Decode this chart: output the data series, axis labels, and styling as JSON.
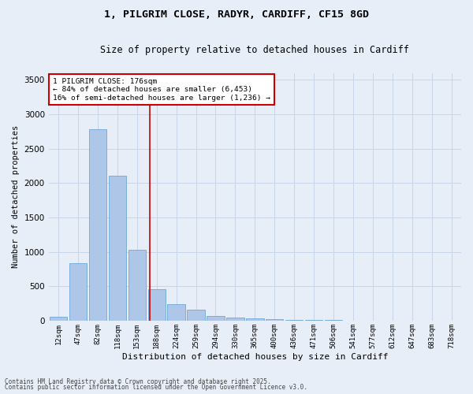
{
  "title_line1": "1, PILGRIM CLOSE, RADYR, CARDIFF, CF15 8GD",
  "title_line2": "Size of property relative to detached houses in Cardiff",
  "xlabel": "Distribution of detached houses by size in Cardiff",
  "ylabel": "Number of detached properties",
  "categories": [
    "12sqm",
    "47sqm",
    "82sqm",
    "118sqm",
    "153sqm",
    "188sqm",
    "224sqm",
    "259sqm",
    "294sqm",
    "330sqm",
    "365sqm",
    "400sqm",
    "436sqm",
    "471sqm",
    "506sqm",
    "541sqm",
    "577sqm",
    "612sqm",
    "647sqm",
    "683sqm",
    "718sqm"
  ],
  "values": [
    55,
    840,
    2780,
    2110,
    1030,
    460,
    240,
    155,
    65,
    45,
    30,
    20,
    10,
    5,
    5,
    3,
    2,
    1,
    1,
    1,
    0
  ],
  "bar_color": "#aec6e8",
  "bar_edge_color": "#5a9fd4",
  "grid_color": "#c8d4e8",
  "background_color": "#e8eef8",
  "annotation_text": "1 PILGRIM CLOSE: 176sqm\n← 84% of detached houses are smaller (6,453)\n16% of semi-detached houses are larger (1,236) →",
  "annotation_box_color": "#ffffff",
  "annotation_box_edge": "#cc0000",
  "vline_color": "#cc0000",
  "ylim": [
    0,
    3600
  ],
  "yticks": [
    0,
    500,
    1000,
    1500,
    2000,
    2500,
    3000,
    3500
  ],
  "footer_line1": "Contains HM Land Registry data © Crown copyright and database right 2025.",
  "footer_line2": "Contains public sector information licensed under the Open Government Licence v3.0."
}
